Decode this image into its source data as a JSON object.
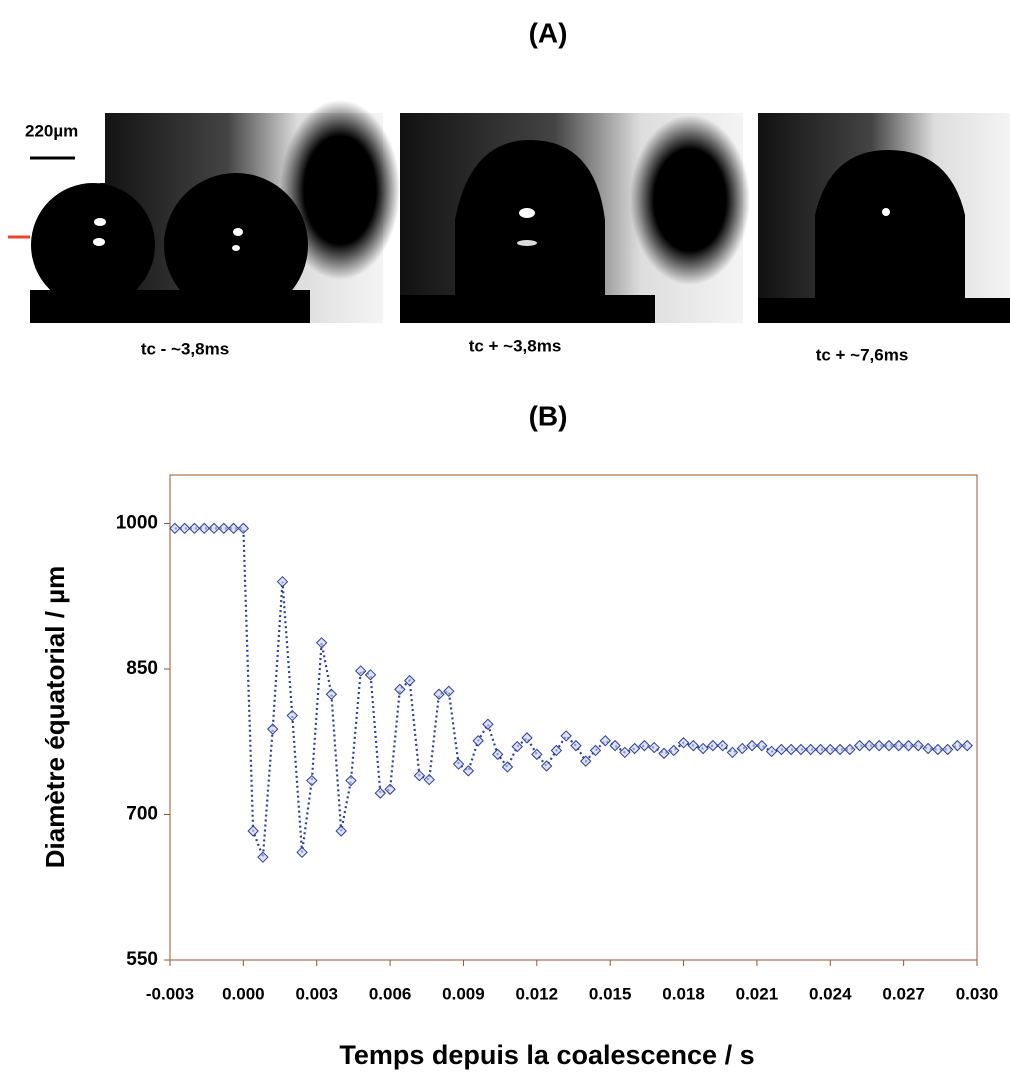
{
  "panel_a": {
    "title": "(A)",
    "scale_label": "220µm",
    "captions": [
      "tc - ~3,8ms",
      "tc + ~3,8ms",
      "tc + ~7,6ms"
    ]
  },
  "chart_data": {
    "type": "line",
    "title": "(B)",
    "xlabel": "Temps depuis la coalescence / s",
    "ylabel": "Diamètre équatorial  / µm",
    "x": [
      -0.0028,
      -0.0024,
      -0.002,
      -0.0016,
      -0.0012,
      -0.0008,
      -0.0004,
      0,
      0.0004,
      0.0008,
      0.0012,
      0.0016,
      0.002,
      0.0024,
      0.0028,
      0.0032,
      0.0036,
      0.004,
      0.0044,
      0.0048,
      0.0052,
      0.0056,
      0.006,
      0.0064,
      0.0068,
      0.0072,
      0.0076,
      0.008,
      0.0084,
      0.0088,
      0.0092,
      0.0096,
      0.01,
      0.0104,
      0.0108,
      0.0112,
      0.0116,
      0.012,
      0.0124,
      0.0128,
      0.0132,
      0.0136,
      0.014,
      0.0144,
      0.0148,
      0.0152,
      0.0156,
      0.016,
      0.0164,
      0.0168,
      0.0172,
      0.0176,
      0.018,
      0.0184,
      0.0188,
      0.0192,
      0.0196,
      0.02,
      0.0204,
      0.0208,
      0.0212,
      0.0216,
      0.022,
      0.0224,
      0.0228,
      0.0232,
      0.0236,
      0.024,
      0.0244,
      0.0248,
      0.0252,
      0.0256,
      0.026,
      0.0264,
      0.0268,
      0.0272,
      0.0276,
      0.028,
      0.0284,
      0.0288,
      0.0292,
      0.0296
    ],
    "values": [
      995,
      995,
      995,
      995,
      995,
      995,
      995,
      995,
      683,
      656,
      788,
      940,
      802,
      661,
      735,
      877,
      824,
      683,
      735,
      848,
      844,
      722,
      726,
      829,
      838,
      740,
      736,
      824,
      827,
      752,
      745,
      776,
      793,
      762,
      749,
      770,
      779,
      762,
      750,
      766,
      781,
      771,
      755,
      766,
      776,
      771,
      764,
      768,
      771,
      769,
      763,
      766,
      774,
      771,
      768,
      771,
      771,
      764,
      768,
      771,
      771,
      765,
      767,
      767,
      767,
      767,
      767,
      767,
      767,
      767,
      771,
      771,
      771,
      771,
      771,
      771,
      771,
      768,
      767,
      767,
      771,
      771
    ],
    "color": "#2b3f9e",
    "marker_fill": "#c9d0ec",
    "xlim": [
      -0.003,
      0.03
    ],
    "ylim": [
      550,
      1050
    ],
    "xticks": [
      -0.003,
      {
        "value": 0,
        "label": "0.000"
      },
      0.003,
      0.006,
      0.009,
      0.012,
      0.015,
      0.018,
      0.021,
      0.024,
      0.027,
      {
        "value": 0.03,
        "label": "0.030"
      }
    ],
    "yticks": [
      550,
      700,
      850,
      1000
    ]
  }
}
